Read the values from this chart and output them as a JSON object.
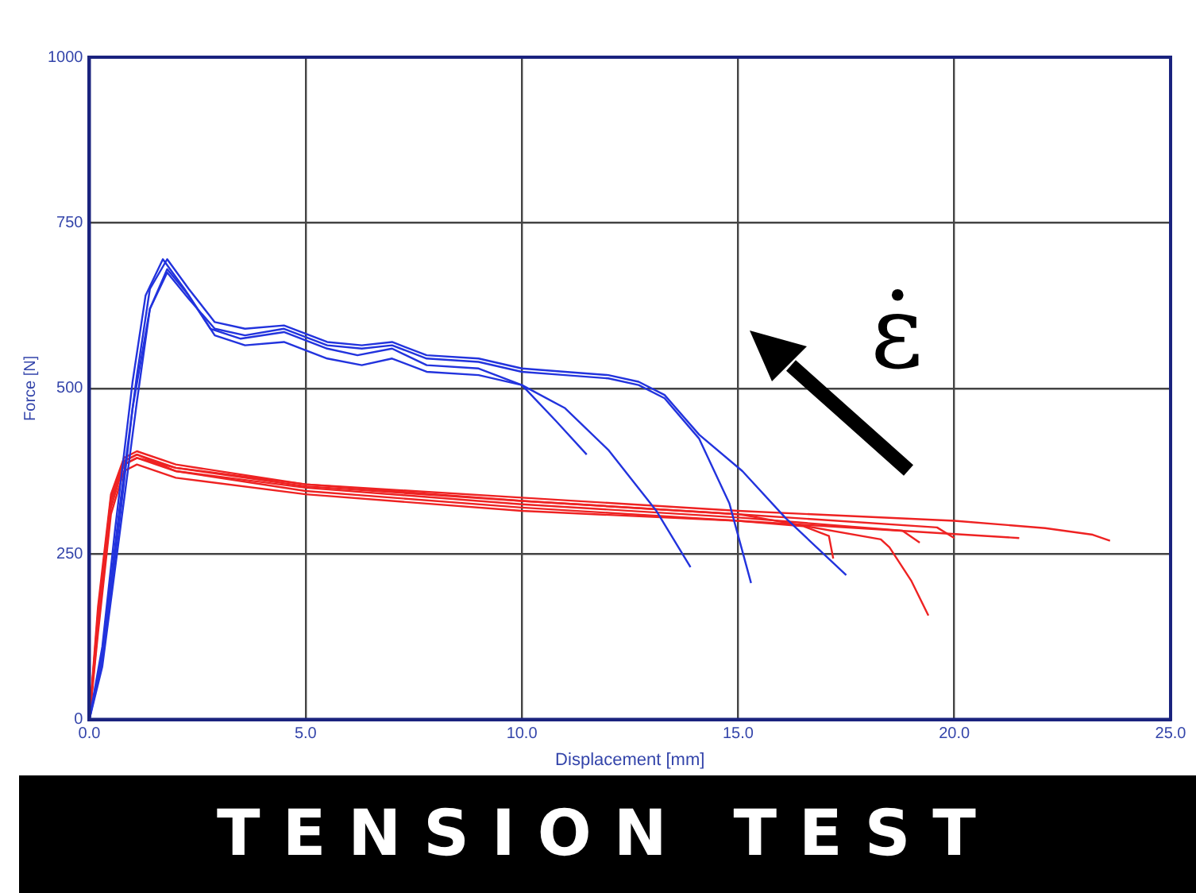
{
  "chart_data": {
    "type": "line",
    "title": "TENSION TEST",
    "xlabel": "Displacement [mm]",
    "ylabel": "Force [N]",
    "annotations": [
      "ε̇"
    ],
    "xlim": [
      0,
      25
    ],
    "ylim": [
      0,
      1000
    ],
    "xticks": [
      {
        "value": 0,
        "label": "0.0"
      },
      {
        "value": 5,
        "label": "5.0"
      },
      {
        "value": 10,
        "label": "10.0"
      },
      {
        "value": 15,
        "label": "15.0"
      },
      {
        "value": 20,
        "label": "20.0"
      },
      {
        "value": 25,
        "label": "25.0"
      }
    ],
    "yticks": [
      0,
      250,
      500,
      750,
      1000
    ],
    "grid": true,
    "legend": false,
    "marker": "none",
    "line_style": "solid",
    "series": [
      {
        "color": "#2233dd",
        "x": [
          0,
          0.3,
          0.6,
          1.0,
          1.3,
          1.7,
          2.2,
          2.8,
          3.5,
          4.5,
          5.5,
          6.2,
          7.0,
          7.8,
          9.0,
          10.0,
          10.8,
          11.5
        ],
        "values": [
          0,
          110,
          290,
          510,
          640,
          695,
          650,
          590,
          575,
          585,
          560,
          550,
          560,
          535,
          530,
          505,
          450,
          400
        ]
      },
      {
        "color": "#2233dd",
        "x": [
          0,
          0.3,
          0.7,
          1.0,
          1.4,
          1.8,
          2.3,
          2.9,
          3.6,
          4.5,
          5.5,
          6.3,
          7.0,
          7.8,
          9.0,
          10.0,
          11.0,
          12.0,
          13.1,
          13.9
        ],
        "values": [
          0,
          90,
          300,
          470,
          620,
          680,
          640,
          580,
          565,
          570,
          545,
          535,
          545,
          525,
          520,
          505,
          470,
          407,
          316,
          230
        ]
      },
      {
        "color": "#2233dd",
        "x": [
          0,
          0.3,
          0.7,
          1.1,
          1.4,
          1.8,
          2.3,
          2.9,
          3.6,
          4.5,
          5.5,
          6.3,
          7.0,
          7.8,
          9.0,
          10.0,
          11.0,
          12.0,
          12.7,
          13.3,
          14.1,
          14.8,
          15.3
        ],
        "values": [
          0,
          80,
          280,
          480,
          620,
          675,
          635,
          590,
          580,
          590,
          565,
          560,
          565,
          545,
          540,
          525,
          520,
          515,
          505,
          485,
          424,
          326,
          206
        ]
      },
      {
        "color": "#2233dd",
        "x": [
          0,
          0.3,
          0.7,
          1.1,
          1.4,
          1.8,
          2.3,
          2.9,
          3.6,
          4.5,
          5.5,
          6.3,
          7.0,
          7.8,
          9.0,
          10.0,
          11.0,
          12.0,
          12.7,
          13.3,
          14.1,
          15.1,
          16.1,
          17.5
        ],
        "values": [
          0,
          100,
          320,
          520,
          650,
          695,
          650,
          600,
          590,
          595,
          570,
          565,
          570,
          550,
          545,
          530,
          525,
          520,
          510,
          490,
          430,
          375,
          304,
          218
        ]
      },
      {
        "color": "#ee2222",
        "x": [
          0,
          0.2,
          0.5,
          0.8,
          1.1,
          2,
          5,
          10,
          15,
          16.5,
          17.1,
          17.2
        ],
        "values": [
          0,
          150,
          330,
          390,
          400,
          375,
          345,
          320,
          300,
          292,
          277,
          243
        ]
      },
      {
        "color": "#ee2222",
        "x": [
          0,
          0.2,
          0.5,
          0.8,
          1.1,
          2,
          5,
          10,
          15,
          18.3,
          18.5,
          19.0,
          19.4
        ],
        "values": [
          0,
          170,
          340,
          395,
          405,
          385,
          355,
          330,
          310,
          272,
          260,
          210,
          157
        ]
      },
      {
        "color": "#ee2222",
        "x": [
          0,
          0.2,
          0.5,
          0.8,
          1.1,
          2,
          5,
          10,
          15,
          18.8,
          19.2
        ],
        "values": [
          0,
          140,
          320,
          385,
          395,
          375,
          350,
          325,
          305,
          285,
          267
        ]
      },
      {
        "color": "#ee2222",
        "x": [
          0,
          0.2,
          0.5,
          0.8,
          1.1,
          2,
          5,
          10,
          15,
          19.6,
          20.0
        ],
        "values": [
          0,
          160,
          335,
          390,
          400,
          380,
          352,
          330,
          310,
          290,
          274
        ]
      },
      {
        "color": "#ee2222",
        "x": [
          0,
          0.2,
          0.5,
          0.8,
          1.1,
          2,
          5,
          10,
          15,
          21.5
        ],
        "values": [
          0,
          130,
          310,
          375,
          385,
          365,
          340,
          315,
          300,
          274
        ]
      },
      {
        "color": "#ee2222",
        "x": [
          0,
          0.2,
          0.5,
          0.8,
          1.1,
          2,
          5,
          10,
          15,
          20,
          22.1,
          23.2,
          23.6
        ],
        "values": [
          0,
          155,
          330,
          385,
          395,
          380,
          355,
          335,
          315,
          300,
          289,
          279,
          270
        ]
      }
    ]
  }
}
